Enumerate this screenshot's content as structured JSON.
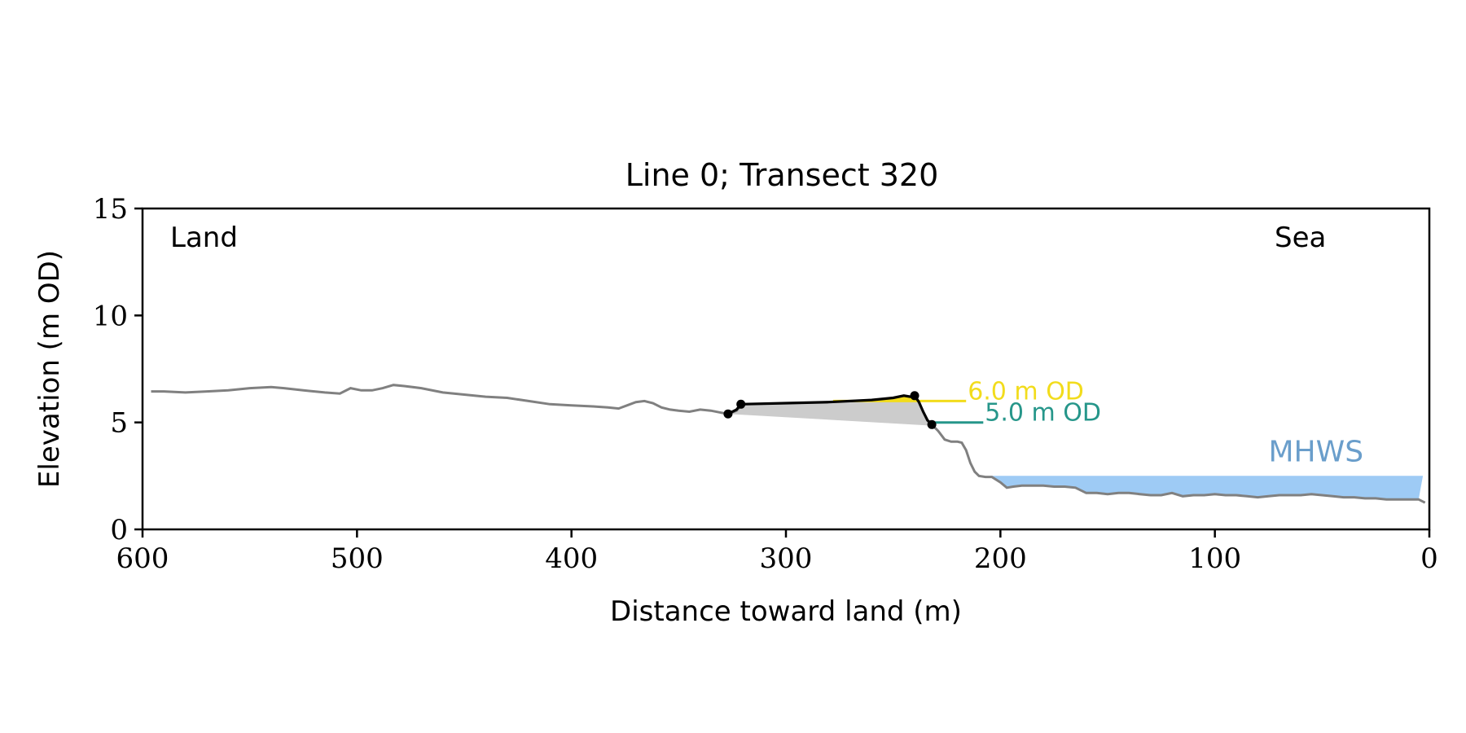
{
  "chart_data": {
    "type": "line",
    "title": "Line 0; Transect 320",
    "xlabel": "Distance toward land (m)",
    "ylabel": "Elevation (m OD)",
    "xlim": [
      600,
      0
    ],
    "ylim": [
      0,
      15
    ],
    "x_ticks": [
      600,
      500,
      400,
      300,
      200,
      100,
      0
    ],
    "y_ticks": [
      0,
      5,
      10,
      15
    ],
    "x_tick_labels": [
      "600",
      "500",
      "400",
      "300",
      "200",
      "100",
      "0"
    ],
    "y_tick_labels": [
      "0",
      "5",
      "10",
      "15"
    ],
    "grid": false,
    "corner_labels": {
      "left": "Land",
      "right": "Sea"
    },
    "colors": {
      "profile": "#808080",
      "feature": "#000000",
      "level_6": "#f2dc1c",
      "level_5": "#26968a",
      "mhws_fill": "#9ecbf5",
      "mhws_text": "#6a9ecb",
      "area_fill": "#cccccc"
    },
    "profile": {
      "x": [
        596,
        590,
        580,
        570,
        560,
        550,
        540,
        534,
        525,
        515,
        508,
        503,
        498,
        493,
        488,
        483,
        478,
        470,
        460,
        450,
        440,
        430,
        420,
        410,
        400,
        390,
        383,
        378,
        374,
        370,
        366,
        362,
        358,
        354,
        350,
        345,
        340,
        335,
        330,
        327,
        323,
        321
      ],
      "y": [
        6.45,
        6.45,
        6.4,
        6.45,
        6.5,
        6.6,
        6.65,
        6.6,
        6.5,
        6.4,
        6.35,
        6.6,
        6.5,
        6.5,
        6.6,
        6.75,
        6.7,
        6.6,
        6.4,
        6.3,
        6.2,
        6.15,
        6.0,
        5.85,
        5.8,
        5.75,
        5.7,
        5.65,
        5.8,
        5.95,
        6.0,
        5.9,
        5.7,
        5.6,
        5.55,
        5.5,
        5.6,
        5.55,
        5.45,
        5.4,
        5.55,
        5.8
      ]
    },
    "profile_seaward": {
      "x": [
        232,
        229,
        226,
        223,
        220,
        218,
        216,
        214,
        212,
        210,
        207,
        204,
        200,
        197,
        194,
        190,
        185,
        180,
        175,
        170,
        165,
        160,
        155,
        150,
        145,
        140,
        135,
        130,
        125,
        120,
        115,
        110,
        105,
        100,
        95,
        90,
        85,
        80,
        75,
        70,
        65,
        60,
        55,
        50,
        45,
        40,
        35,
        30,
        25,
        20,
        15,
        10,
        5,
        2
      ],
      "y": [
        4.9,
        4.6,
        4.2,
        4.1,
        4.1,
        4.05,
        3.7,
        3.1,
        2.7,
        2.5,
        2.45,
        2.45,
        2.2,
        1.95,
        2.0,
        2.05,
        2.05,
        2.05,
        2.0,
        2.0,
        1.95,
        1.7,
        1.7,
        1.65,
        1.7,
        1.7,
        1.65,
        1.6,
        1.6,
        1.7,
        1.55,
        1.6,
        1.6,
        1.65,
        1.6,
        1.6,
        1.55,
        1.5,
        1.55,
        1.6,
        1.6,
        1.6,
        1.65,
        1.6,
        1.55,
        1.5,
        1.5,
        1.45,
        1.45,
        1.4,
        1.4,
        1.4,
        1.4,
        1.25
      ]
    },
    "feature": {
      "x": [
        327,
        323,
        321,
        300,
        280,
        260,
        250,
        245,
        242,
        240,
        238,
        236,
        234,
        232
      ],
      "y": [
        5.4,
        5.6,
        5.85,
        5.9,
        5.95,
        6.05,
        6.15,
        6.25,
        6.2,
        6.25,
        5.95,
        5.5,
        5.1,
        4.9
      ]
    },
    "feature_markers": [
      {
        "x": 327,
        "y": 5.4
      },
      {
        "x": 321,
        "y": 5.85
      },
      {
        "x": 240,
        "y": 6.25
      },
      {
        "x": 232,
        "y": 4.9
      }
    ],
    "shaded_area_baseline": {
      "x": [
        327,
        232
      ],
      "y": [
        5.4,
        4.85
      ]
    },
    "levels": [
      {
        "label": "6.0 m OD",
        "y": 6.0,
        "x_start": 278,
        "x_end": 216,
        "color": "#f2dc1c"
      },
      {
        "label": "5.0 m OD",
        "y": 5.0,
        "x_start": 232,
        "x_end": 208,
        "color": "#26968a"
      }
    ],
    "mhws": {
      "label": "MHWS",
      "level": 2.5,
      "x_start": 205,
      "x_end": 3
    }
  }
}
